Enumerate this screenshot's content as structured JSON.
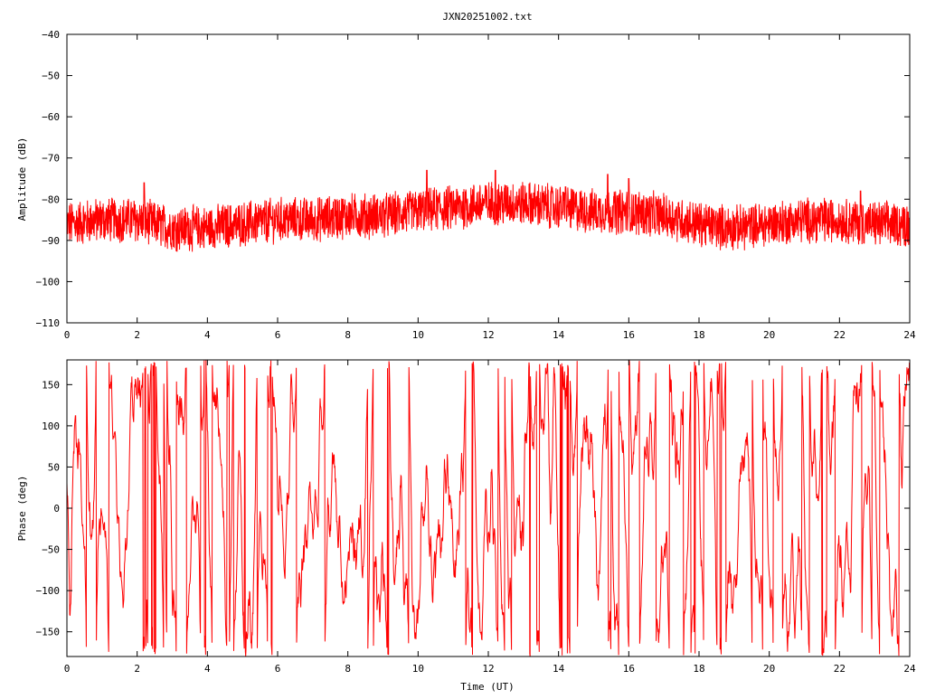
{
  "title": "JXN20251002.txt",
  "colors": {
    "series": "#ff0000",
    "axes": "#000000",
    "background": "#ffffff"
  },
  "chart_data": [
    {
      "type": "line",
      "title": "JXN20251002.txt",
      "xlabel": "",
      "ylabel": "Amplitude (dB)",
      "xlim": [
        0,
        24
      ],
      "ylim": [
        -110,
        -40
      ],
      "x_ticks": [
        "0",
        "2",
        "4",
        "6",
        "8",
        "10",
        "12",
        "14",
        "16",
        "18",
        "20",
        "22",
        "24"
      ],
      "y_ticks": [
        "-40",
        "-50",
        "-60",
        "-70",
        "-80",
        "-90",
        "-100",
        "-110"
      ],
      "grid": false,
      "series": [
        {
          "x": [
            0,
            1,
            2,
            3,
            4,
            5,
            6,
            7,
            8,
            9,
            10,
            11,
            12,
            13,
            14,
            15,
            16,
            17,
            18,
            19,
            20,
            21,
            22,
            23,
            24
          ],
          "center": [
            -86,
            -85,
            -85,
            -87,
            -87,
            -86,
            -85,
            -85,
            -84,
            -84,
            -83,
            -82,
            -81,
            -81,
            -82,
            -83,
            -83,
            -84,
            -86,
            -87,
            -86,
            -85,
            -85,
            -86,
            -86
          ],
          "spread": [
            5,
            5,
            5,
            5,
            5,
            5,
            5,
            5,
            5,
            5,
            5,
            5,
            5,
            5,
            5,
            5,
            5,
            5,
            5,
            5,
            5,
            5,
            5,
            5,
            5
          ],
          "spikes": [
            [
              2.2,
              -76
            ],
            [
              10.25,
              -73
            ],
            [
              12.2,
              -73
            ],
            [
              14.2,
              -77
            ],
            [
              15.4,
              -74
            ],
            [
              16.0,
              -75
            ],
            [
              22.6,
              -78
            ]
          ]
        }
      ]
    },
    {
      "type": "line",
      "title": "",
      "xlabel": "Time (UT)",
      "ylabel": "Phase (deg)",
      "xlim": [
        0,
        24
      ],
      "ylim": [
        -180,
        180
      ],
      "x_ticks": [
        "0",
        "2",
        "4",
        "6",
        "8",
        "10",
        "12",
        "14",
        "16",
        "18",
        "20",
        "22",
        "24"
      ],
      "y_ticks": [
        "150",
        "100",
        "50",
        "0",
        "-50",
        "-100",
        "-150"
      ],
      "grid": false,
      "series": [
        {
          "description_pattern": "wrapped",
          "range": [
            -180,
            180
          ]
        }
      ]
    }
  ]
}
